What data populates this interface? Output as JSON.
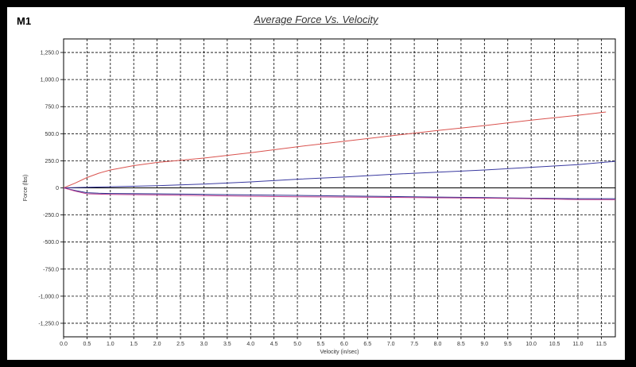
{
  "chart_data": {
    "type": "line",
    "panel_label": "M1",
    "title": "Average Force Vs. Velocity",
    "xlabel": "Velocity (in/sec)",
    "ylabel": "Force (lbs)",
    "xlim": [
      0,
      11.8
    ],
    "ylim": [
      -1375,
      1375
    ],
    "x_ticks": [
      0.0,
      0.5,
      1.0,
      1.5,
      2.0,
      2.5,
      3.0,
      3.5,
      4.0,
      4.5,
      5.0,
      5.5,
      6.0,
      6.5,
      7.0,
      7.5,
      8.0,
      8.5,
      9.0,
      9.5,
      10.0,
      10.5,
      11.0,
      11.5
    ],
    "x_tick_labels": [
      "0.0",
      "0.5",
      "1.0",
      "1.5",
      "2.0",
      "2.5",
      "3.0",
      "3.5",
      "4.0",
      "4.5",
      "5.0",
      "5.5",
      "6.0",
      "6.5",
      "7.0",
      "7.5",
      "8.0",
      "8.5",
      "9.0",
      "9.5",
      "10.0",
      "10.5",
      "11.0",
      "11.5"
    ],
    "y_ticks": [
      1250,
      1000,
      750,
      500,
      250,
      0,
      -250,
      -500,
      -750,
      -1000,
      -1250
    ],
    "y_tick_labels": [
      "1,250.0",
      "1,000.0",
      "750.0",
      "500.0",
      "250.0",
      "0",
      "-250.0",
      "-500.0",
      "-750.0",
      "-1,000.0",
      "-1,250.0"
    ],
    "grid": true,
    "series": [
      {
        "color": "#d9534f",
        "x": [
          0,
          0.25,
          0.5,
          0.75,
          1.0,
          1.5,
          2.0,
          2.5,
          3.0,
          4.0,
          5.0,
          6.0,
          7.0,
          8.0,
          9.0,
          10.0,
          11.0,
          11.6
        ],
        "y": [
          0,
          45,
          95,
          135,
          165,
          205,
          235,
          255,
          275,
          325,
          380,
          430,
          480,
          530,
          575,
          625,
          670,
          700
        ]
      },
      {
        "color": "#3a3aa0",
        "x": [
          0,
          0.5,
          1.0,
          2.0,
          3.0,
          4.0,
          5.0,
          6.0,
          7.0,
          8.0,
          9.0,
          10.0,
          11.0,
          11.8
        ],
        "y": [
          0,
          5,
          10,
          20,
          35,
          55,
          80,
          100,
          125,
          145,
          165,
          190,
          215,
          245
        ]
      },
      {
        "color": "#2a2a8a",
        "x": [
          0,
          0.25,
          0.5,
          0.75,
          1.0,
          2.0,
          3.0,
          4.0,
          5.0,
          6.0,
          7.0,
          8.0,
          9.0,
          10.0,
          11.0,
          11.8
        ],
        "y": [
          0,
          -25,
          -45,
          -50,
          -52,
          -55,
          -60,
          -65,
          -70,
          -75,
          -80,
          -85,
          -90,
          -95,
          -100,
          -100
        ]
      },
      {
        "color": "#c04090",
        "x": [
          0,
          0.25,
          0.5,
          0.75,
          1.0,
          2.0,
          3.0,
          4.0,
          5.0,
          6.0,
          7.0,
          8.0,
          9.0,
          10.0,
          11.0,
          11.8
        ],
        "y": [
          0,
          -30,
          -55,
          -58,
          -60,
          -65,
          -72,
          -78,
          -82,
          -85,
          -88,
          -92,
          -95,
          -100,
          -108,
          -110
        ]
      }
    ]
  }
}
